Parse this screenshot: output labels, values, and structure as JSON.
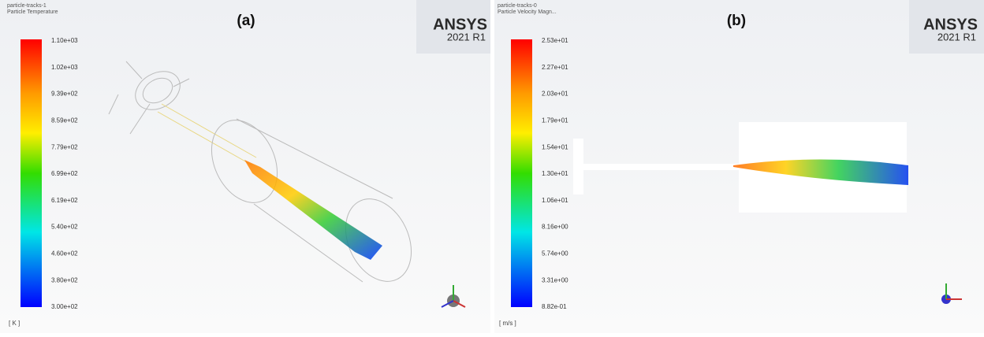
{
  "panels": [
    {
      "label": "(a)",
      "header": [
        "particle-tracks-1",
        "Particle Temperature"
      ],
      "ticks": [
        "1.10e+03",
        "1.02e+03",
        "9.39e+02",
        "8.59e+02",
        "7.79e+02",
        "6.99e+02",
        "6.19e+02",
        "5.40e+02",
        "4.60e+02",
        "3.80e+02",
        "3.00e+02"
      ],
      "unit": "[ K ]",
      "logo": "ANSYS",
      "version": "2021 R1"
    },
    {
      "label": "(b)",
      "header": [
        "particle-tracks-0",
        "Particle Velocity Magn..."
      ],
      "ticks": [
        "2.53e+01",
        "2.27e+01",
        "2.03e+01",
        "1.79e+01",
        "1.54e+01",
        "1.30e+01",
        "1.06e+01",
        "8.16e+00",
        "5.74e+00",
        "3.31e+00",
        "8.82e-01"
      ],
      "unit": "[ m/s ]",
      "logo": "ANSYS",
      "version": "2021 R1"
    }
  ]
}
